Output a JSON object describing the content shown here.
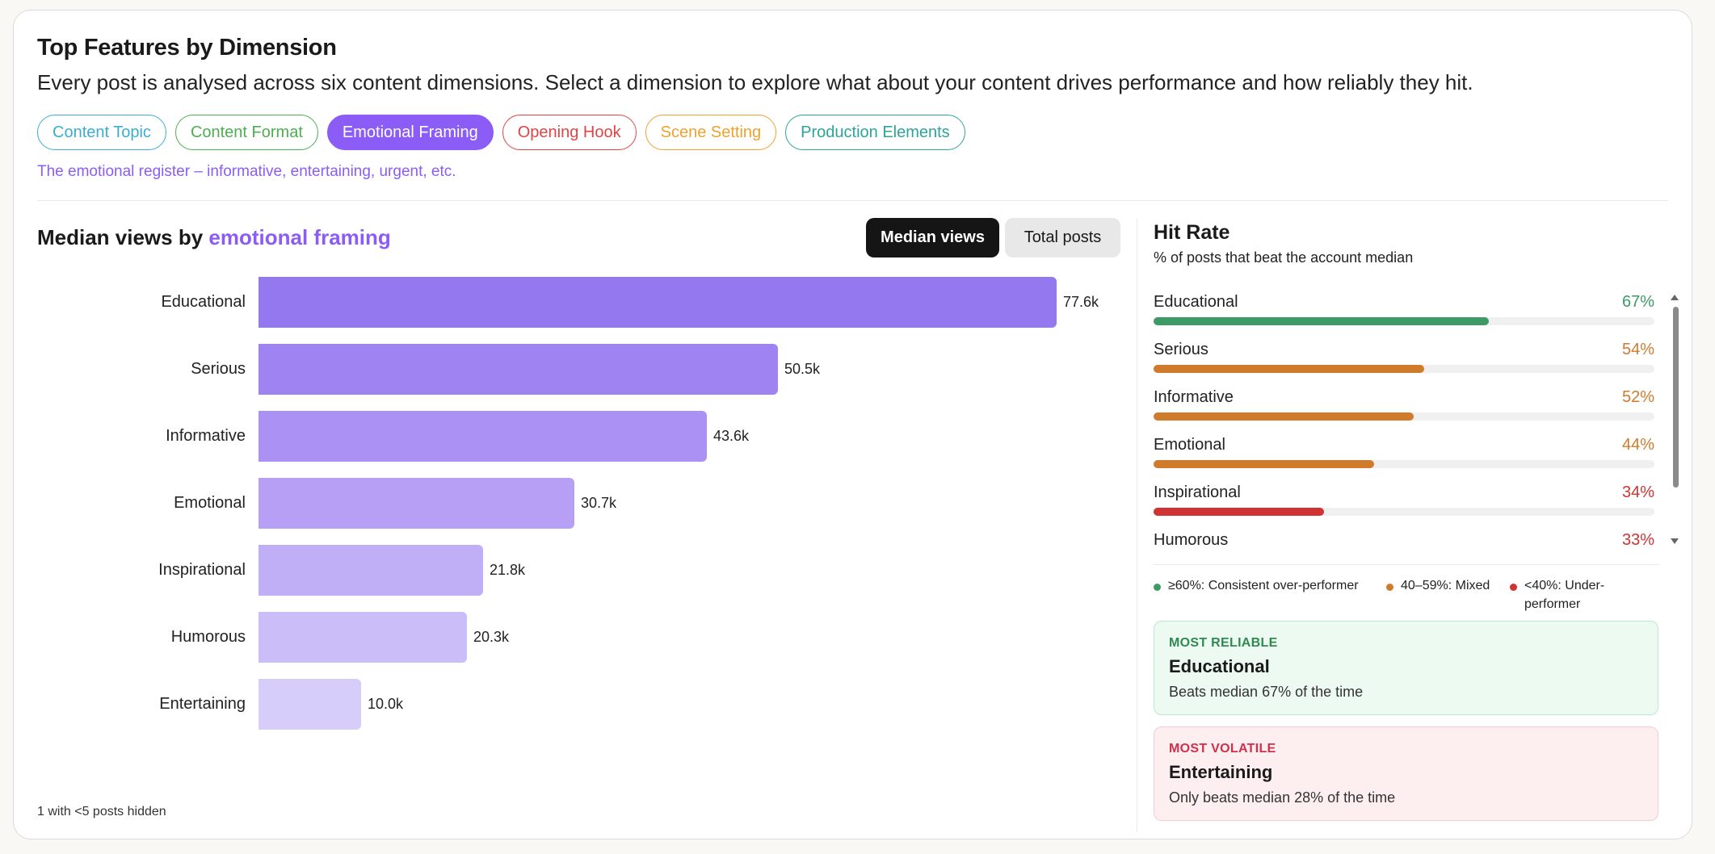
{
  "header": {
    "title": "Top Features by Dimension",
    "subtitle": "Every post is analysed across six content dimensions. Select a dimension to explore what about your content drives performance and how reliably they hit."
  },
  "dimensions": [
    {
      "label": "Content Topic",
      "color": "#3aaed0",
      "active": false
    },
    {
      "label": "Content Format",
      "color": "#4caf50",
      "active": false
    },
    {
      "label": "Emotional Framing",
      "color": "#8b5cf6",
      "active": true
    },
    {
      "label": "Opening Hook",
      "color": "#e04444",
      "active": false
    },
    {
      "label": "Scene Setting",
      "color": "#eea22c",
      "active": false
    },
    {
      "label": "Production Elements",
      "color": "#2ba59a",
      "active": false
    }
  ],
  "dimension_description": "The emotional register – informative, entertaining, urgent, etc.",
  "chart": {
    "title_prefix": "Median views by ",
    "title_accent": "emotional framing",
    "toggle_median": "Median views",
    "toggle_total": "Total posts",
    "footnote": "1 with <5 posts hidden"
  },
  "chart_data": {
    "type": "bar",
    "orientation": "horizontal",
    "categories": [
      "Educational",
      "Serious",
      "Informative",
      "Emotional",
      "Inspirational",
      "Humorous",
      "Entertaining"
    ],
    "values": [
      77.6,
      50.5,
      43.6,
      30.7,
      21.8,
      20.3,
      10.0
    ],
    "value_labels": [
      "77.6k",
      "50.5k",
      "43.6k",
      "30.7k",
      "21.8k",
      "20.3k",
      "10.0k"
    ],
    "colors": [
      "#9478ef",
      "#a083f2",
      "#ab91f3",
      "#b69ff5",
      "#c0aef7",
      "#cbbdf8",
      "#d6cdfa"
    ]
  },
  "hit_rate": {
    "title": "Hit Rate",
    "subtitle": "% of posts that beat the account median",
    "items": [
      {
        "name": "Educational",
        "value": 67,
        "label": "67%",
        "color": "#3d9a64"
      },
      {
        "name": "Serious",
        "value": 54,
        "label": "54%",
        "color": "#d07a2c"
      },
      {
        "name": "Informative",
        "value": 52,
        "label": "52%",
        "color": "#d07a2c"
      },
      {
        "name": "Emotional",
        "value": 44,
        "label": "44%",
        "color": "#d07a2c"
      },
      {
        "name": "Inspirational",
        "value": 34,
        "label": "34%",
        "color": "#cf3333"
      },
      {
        "name": "Humorous",
        "value": 33,
        "label": "33%",
        "color": "#cf3333"
      }
    ],
    "legend": [
      {
        "label": "≥60%: Consistent over-performer",
        "color": "#3d9a64"
      },
      {
        "label": "40–59%: Mixed",
        "color": "#d07a2c"
      },
      {
        "label": "<40%: Under-performer",
        "color": "#cf3333"
      }
    ]
  },
  "most_reliable": {
    "kicker": "MOST RELIABLE",
    "name": "Educational",
    "desc": "Beats median 67% of the time"
  },
  "most_volatile": {
    "kicker": "MOST VOLATILE",
    "name": "Entertaining",
    "desc": "Only beats median 28% of the time"
  }
}
